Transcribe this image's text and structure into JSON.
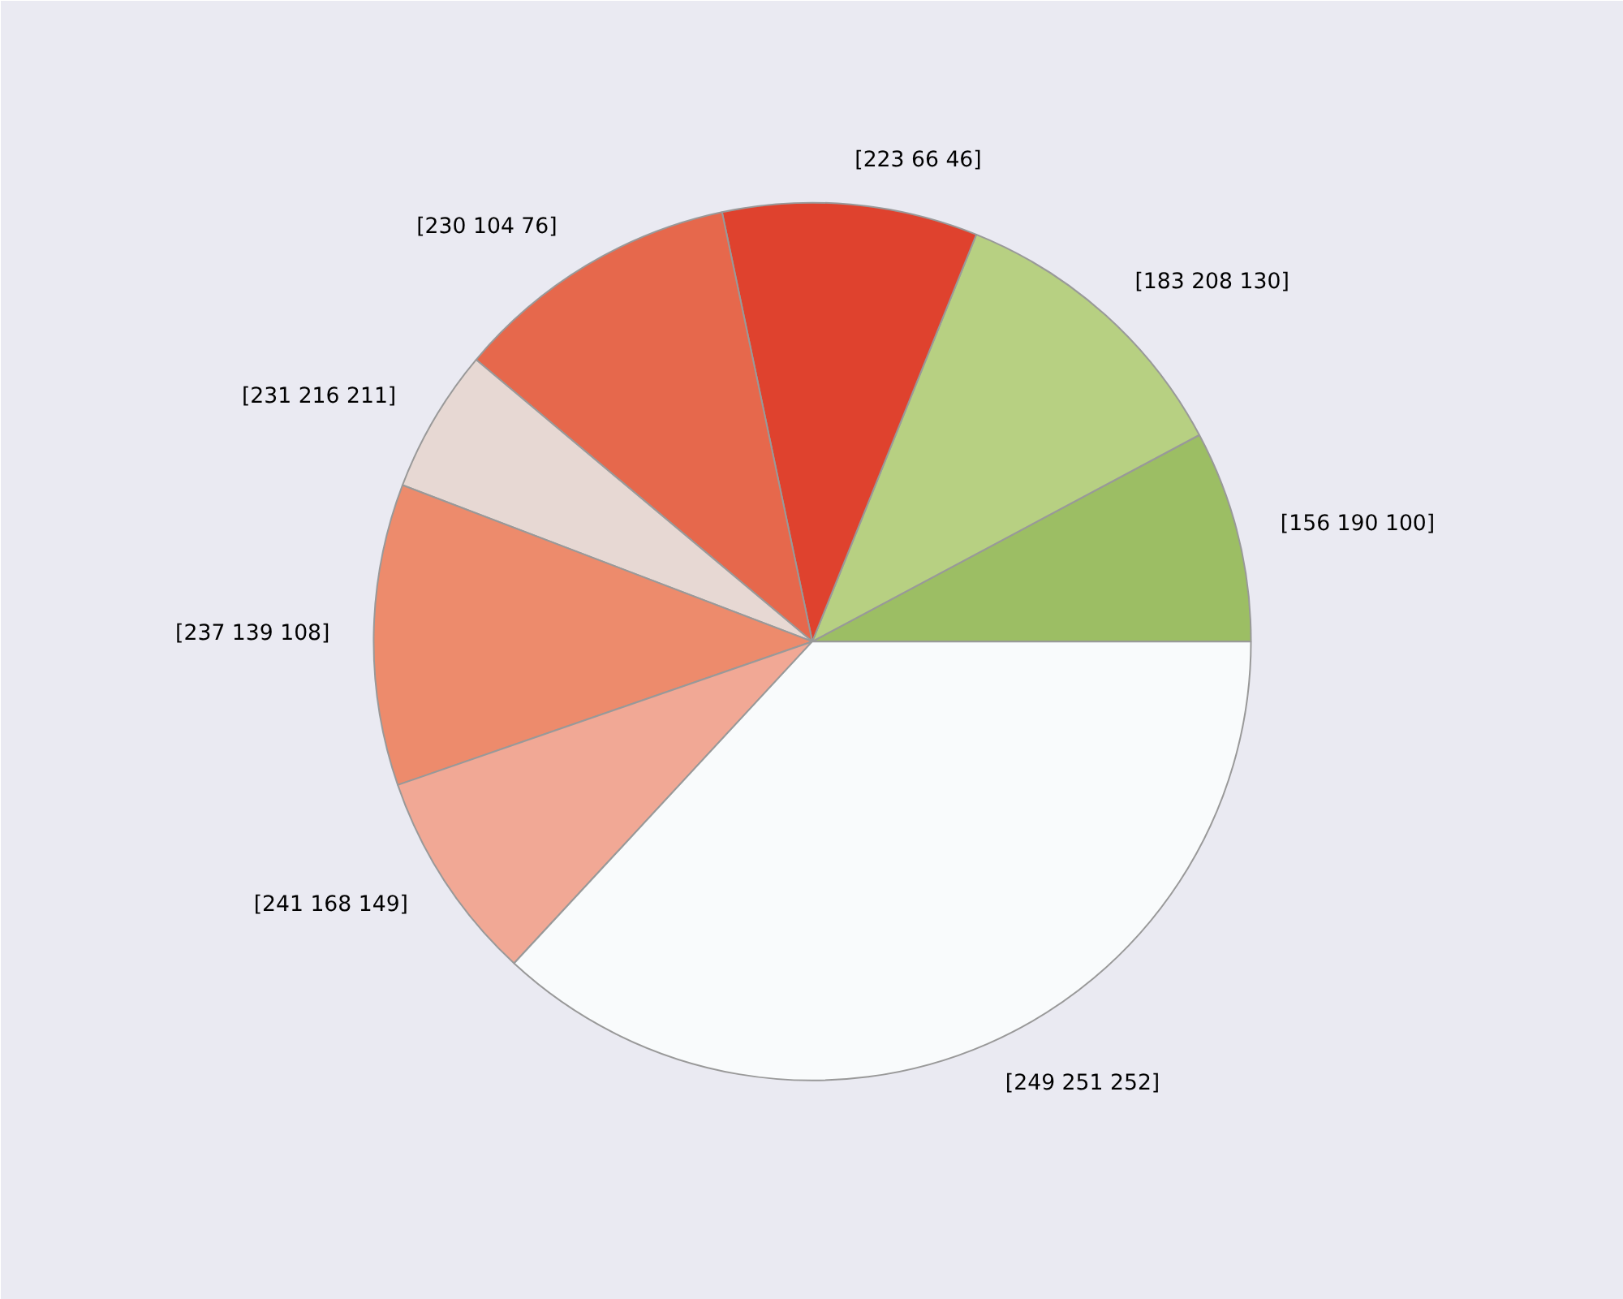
{
  "chart_data": {
    "type": "pie",
    "categories": [
      "[156 190 100]",
      "[183 208 130]",
      "[223  66  46]",
      "[230 104  76]",
      "[231 216 211]",
      "[237 139 108]",
      "[241 168 149]",
      "[249 251 252]"
    ],
    "values": [
      7.8,
      11.1,
      9.4,
      10.6,
      5.3,
      11.1,
      7.8,
      36.9
    ],
    "colors": [
      "#9cbe64",
      "#b7d082",
      "#df422e",
      "#e6684c",
      "#e7d8d3",
      "#ed8b6c",
      "#f1a895",
      "#f9fbfc"
    ]
  }
}
